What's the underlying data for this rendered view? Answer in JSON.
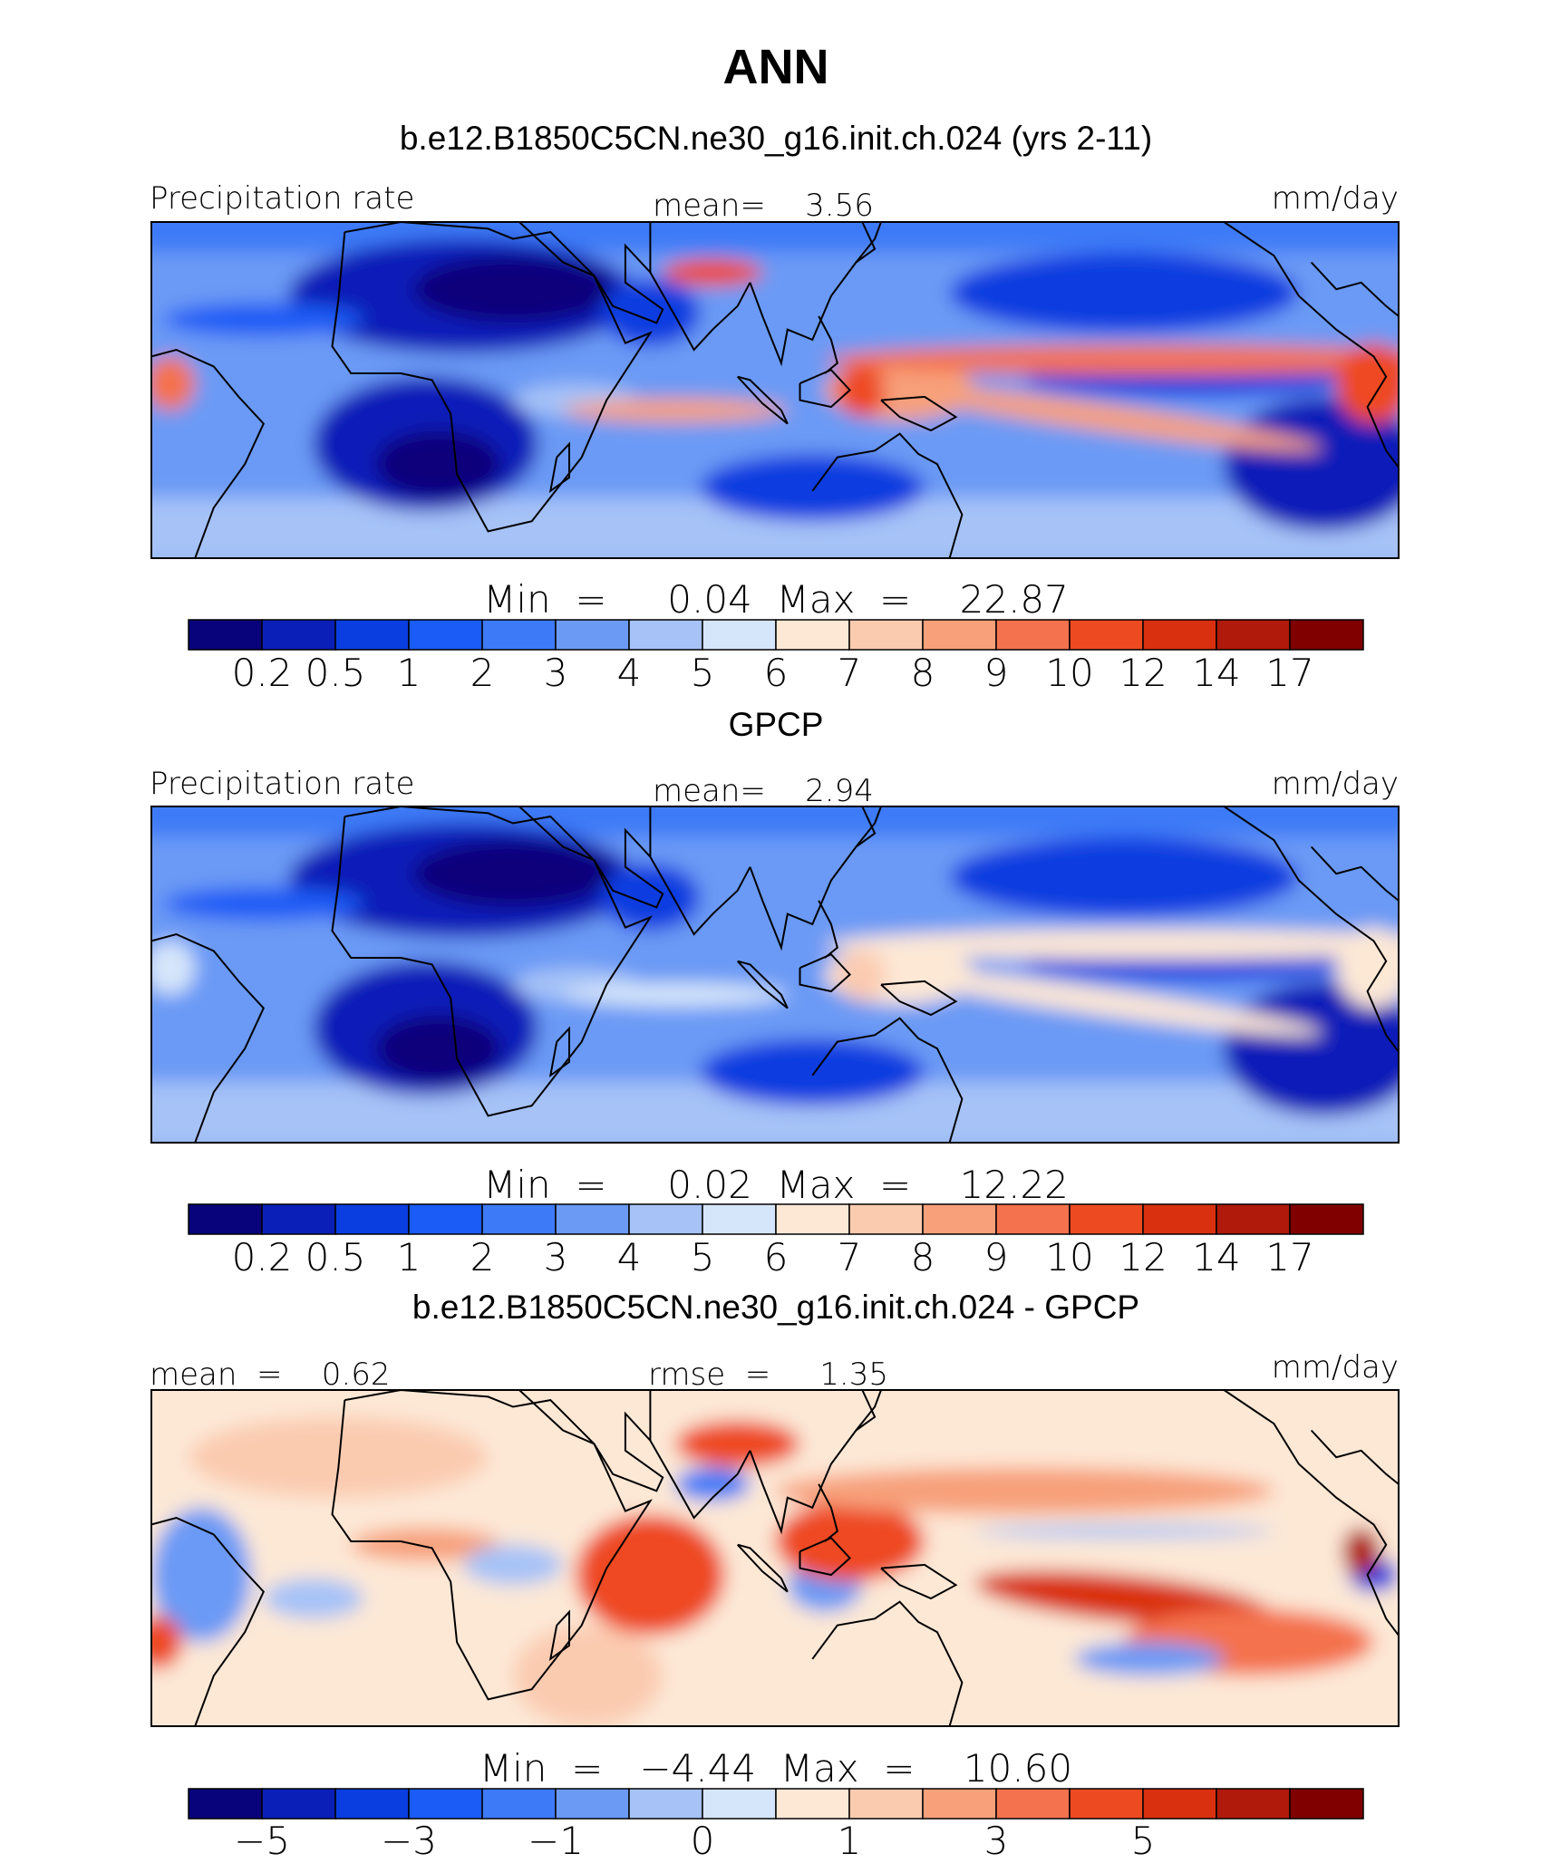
{
  "page_title": "ANN",
  "chart_data": [
    {
      "type": "heatmap",
      "title": "b.e12.B1850C5CN.ne30_g16.init.ch.024 (yrs 2-11)",
      "left_label": "Precipitation rate",
      "center_label": "mean=    3.56",
      "right_label": "mm/day",
      "stats_label": "Min  =     0.04  Max  =    22.87",
      "min": 0.04,
      "max": 22.87,
      "mean": 3.56,
      "colorbar_ticks": [
        "0.2",
        "0.5",
        "1",
        "2",
        "3",
        "4",
        "5",
        "6",
        "7",
        "8",
        "9",
        "10",
        "12",
        "14",
        "17"
      ],
      "colorbar_levels": [
        0.2,
        0.5,
        1,
        2,
        3,
        4,
        5,
        6,
        7,
        8,
        9,
        10,
        12,
        14,
        17
      ]
    },
    {
      "type": "heatmap",
      "title": "GPCP",
      "left_label": "Precipitation rate",
      "center_label": "mean=    2.94",
      "right_label": "mm/day",
      "stats_label": "Min  =     0.02  Max  =    12.22",
      "min": 0.02,
      "max": 12.22,
      "mean": 2.94,
      "colorbar_ticks": [
        "0.2",
        "0.5",
        "1",
        "2",
        "3",
        "4",
        "5",
        "6",
        "7",
        "8",
        "9",
        "10",
        "12",
        "14",
        "17"
      ],
      "colorbar_levels": [
        0.2,
        0.5,
        1,
        2,
        3,
        4,
        5,
        6,
        7,
        8,
        9,
        10,
        12,
        14,
        17
      ]
    },
    {
      "type": "heatmap",
      "title": "b.e12.B1850C5CN.ne30_g16.init.ch.024 - GPCP",
      "left_label": "mean  =    0.62",
      "center_label": "rmse  =     1.35",
      "right_label": "mm/day",
      "stats_label": "Min  =   −4.44  Max  =    10.60",
      "min": -4.44,
      "max": 10.6,
      "mean": 0.62,
      "rmse": 1.35,
      "colorbar_ticks": [
        "−5",
        "−3",
        "−1",
        "0",
        "1",
        "3",
        "5"
      ],
      "colorbar_tick_bounds": [
        1,
        3,
        5,
        7,
        9,
        11,
        13
      ]
    }
  ],
  "colors": {
    "palette": [
      "#08037a",
      "#0a1fb8",
      "#0a3ee0",
      "#1a5cf5",
      "#3d7af7",
      "#6b9af5",
      "#a6c2f7",
      "#d6e6fa",
      "#fde8d6",
      "#fbcbb0",
      "#f7a07a",
      "#f4724d",
      "#ee4a22",
      "#d9300f",
      "#b01a0b",
      "#800000"
    ],
    "land_outline": "#000000"
  }
}
